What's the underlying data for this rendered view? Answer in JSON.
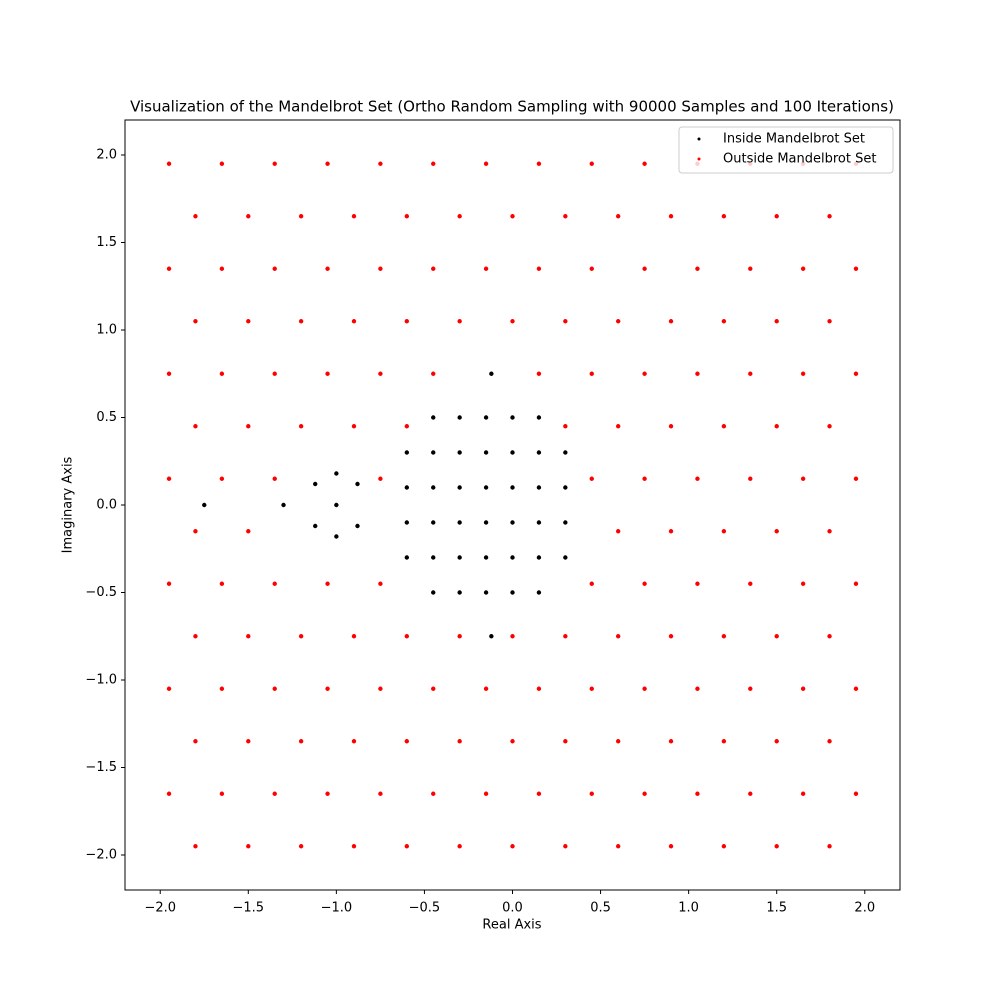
{
  "chart_data": {
    "type": "scatter",
    "title": "Visualization of the Mandelbrot Set (Ortho Random Sampling with 90000 Samples and 100 Iterations)",
    "x_label": "Real Axis",
    "y_label": "Imaginary Axis",
    "xlim": [
      -2.2,
      2.2
    ],
    "ylim": [
      -2.2,
      2.2
    ],
    "xticks": [
      {
        "value": -2,
        "label": "−2.0"
      },
      {
        "value": -1.5,
        "label": "−1.5"
      },
      {
        "value": -1,
        "label": "−1.0"
      },
      {
        "value": -0.5,
        "label": "−0.5"
      },
      {
        "value": 0,
        "label": "0.0"
      },
      {
        "value": 0.5,
        "label": "0.5"
      },
      {
        "value": 1,
        "label": "1.0"
      },
      {
        "value": 1.5,
        "label": "1.5"
      },
      {
        "value": 2,
        "label": "2.0"
      }
    ],
    "yticks": [
      {
        "value": -2,
        "label": "−2.0"
      },
      {
        "value": -1.5,
        "label": "−1.5"
      },
      {
        "value": -1,
        "label": "−1.0"
      },
      {
        "value": -0.5,
        "label": "−0.5"
      },
      {
        "value": 0,
        "label": "0.0"
      },
      {
        "value": 0.5,
        "label": "0.5"
      },
      {
        "value": 1,
        "label": "1.0"
      },
      {
        "value": 1.5,
        "label": "1.5"
      },
      {
        "value": 2,
        "label": "2.0"
      }
    ],
    "legend": "upper right",
    "series": [
      {
        "name": "Inside Mandelbrot Set",
        "color": "black",
        "x": [
          -0.45,
          -0.3,
          -0.15,
          0,
          0.15,
          -0.6,
          -0.45,
          -0.3,
          -0.15,
          0,
          0.15,
          0.3,
          -0.6,
          -0.45,
          -0.3,
          -0.15,
          0,
          0.15,
          0.3,
          -0.6,
          -0.45,
          -0.3,
          -0.15,
          0,
          0.15,
          0.3,
          -0.6,
          -0.45,
          -0.3,
          -0.15,
          0,
          0.15,
          0.3,
          -0.45,
          -0.3,
          -0.15,
          0,
          0.15,
          -1,
          -1.12,
          -0.88,
          -1.12,
          -0.88,
          -1,
          -1,
          -0.12,
          -0.12,
          -1.3,
          -1.75
        ],
        "y": [
          0.5,
          0.5,
          0.5,
          0.5,
          0.5,
          0.3,
          0.3,
          0.3,
          0.3,
          0.3,
          0.3,
          0.3,
          0.1,
          0.1,
          0.1,
          0.1,
          0.1,
          0.1,
          0.1,
          -0.1,
          -0.1,
          -0.1,
          -0.1,
          -0.1,
          -0.1,
          -0.1,
          -0.3,
          -0.3,
          -0.3,
          -0.3,
          -0.3,
          -0.3,
          -0.3,
          -0.5,
          -0.5,
          -0.5,
          -0.5,
          -0.5,
          0,
          0.12,
          0.12,
          -0.12,
          -0.12,
          0.18,
          -0.18,
          0.75,
          -0.75,
          0,
          0
        ]
      },
      {
        "name": "Outside Mandelbrot Set",
        "color": "red",
        "x": [
          -1.95,
          -1.65,
          -1.35,
          -1.05,
          -0.75,
          -0.45,
          -0.15,
          0.15,
          0.45,
          0.75,
          1.05,
          1.35,
          1.65,
          1.95,
          -1.8,
          -1.5,
          -1.2,
          -0.9,
          -0.6,
          -0.3,
          0,
          0.3,
          0.6,
          0.9,
          1.2,
          1.5,
          1.8,
          -1.95,
          -1.65,
          -1.35,
          -1.05,
          -0.75,
          -0.45,
          -0.15,
          0.15,
          0.45,
          0.75,
          1.05,
          1.35,
          1.65,
          1.95,
          -1.8,
          -1.5,
          -1.2,
          -0.9,
          -0.6,
          -0.3,
          0,
          0.3,
          0.6,
          0.9,
          1.2,
          1.5,
          1.8,
          -1.95,
          -1.65,
          -1.35,
          -1.05,
          -0.75,
          -0.45,
          0.15,
          0.45,
          0.75,
          1.05,
          1.35,
          1.65,
          1.95,
          -1.8,
          -1.5,
          -1.2,
          -0.9,
          -0.6,
          0.3,
          0.6,
          0.9,
          1.2,
          1.5,
          1.8,
          -1.95,
          -1.65,
          -1.35,
          -0.75,
          0.45,
          0.75,
          1.05,
          1.35,
          1.65,
          1.95,
          -1.8,
          -1.5,
          0.6,
          0.9,
          1.2,
          1.5,
          1.8,
          -1.95,
          -1.65,
          -1.35,
          -1.05,
          -0.75,
          0.45,
          0.75,
          1.05,
          1.35,
          1.65,
          1.95,
          -1.8,
          -1.5,
          -1.2,
          -0.9,
          -0.6,
          -0.3,
          0,
          0.3,
          0.6,
          0.9,
          1.2,
          1.5,
          1.8,
          -1.95,
          -1.65,
          -1.35,
          -1.05,
          -0.75,
          -0.45,
          -0.15,
          0.15,
          0.45,
          0.75,
          1.05,
          1.35,
          1.65,
          1.95,
          -1.8,
          -1.5,
          -1.2,
          -0.9,
          -0.6,
          -0.3,
          0,
          0.3,
          0.6,
          0.9,
          1.2,
          1.5,
          1.8,
          -1.95,
          -1.65,
          -1.35,
          -1.05,
          -0.75,
          -0.45,
          -0.15,
          0.15,
          0.45,
          0.75,
          1.05,
          1.35,
          1.65,
          1.95,
          -1.8,
          -1.5,
          -1.2,
          -0.9,
          -0.6,
          -0.3,
          0,
          0.3,
          0.6,
          0.9,
          1.2,
          1.5,
          1.8
        ],
        "y": [
          1.95,
          1.95,
          1.95,
          1.95,
          1.95,
          1.95,
          1.95,
          1.95,
          1.95,
          1.95,
          1.95,
          1.95,
          1.95,
          1.95,
          1.65,
          1.65,
          1.65,
          1.65,
          1.65,
          1.65,
          1.65,
          1.65,
          1.65,
          1.65,
          1.65,
          1.65,
          1.65,
          1.35,
          1.35,
          1.35,
          1.35,
          1.35,
          1.35,
          1.35,
          1.35,
          1.35,
          1.35,
          1.35,
          1.35,
          1.35,
          1.35,
          1.05,
          1.05,
          1.05,
          1.05,
          1.05,
          1.05,
          1.05,
          1.05,
          1.05,
          1.05,
          1.05,
          1.05,
          1.05,
          0.75,
          0.75,
          0.75,
          0.75,
          0.75,
          0.75,
          0.75,
          0.75,
          0.75,
          0.75,
          0.75,
          0.75,
          0.75,
          0.45,
          0.45,
          0.45,
          0.45,
          0.45,
          0.45,
          0.45,
          0.45,
          0.45,
          0.45,
          0.45,
          0.15,
          0.15,
          0.15,
          0.15,
          0.15,
          0.15,
          0.15,
          0.15,
          0.15,
          0.15,
          -0.15,
          -0.15,
          -0.15,
          -0.15,
          -0.15,
          -0.15,
          -0.15,
          -0.45,
          -0.45,
          -0.45,
          -0.45,
          -0.45,
          -0.45,
          -0.45,
          -0.45,
          -0.45,
          -0.45,
          -0.45,
          -0.75,
          -0.75,
          -0.75,
          -0.75,
          -0.75,
          -0.75,
          -0.75,
          -0.75,
          -0.75,
          -0.75,
          -0.75,
          -0.75,
          -0.75,
          -1.05,
          -1.05,
          -1.05,
          -1.05,
          -1.05,
          -1.05,
          -1.05,
          -1.05,
          -1.05,
          -1.05,
          -1.05,
          -1.05,
          -1.05,
          -1.05,
          -1.35,
          -1.35,
          -1.35,
          -1.35,
          -1.35,
          -1.35,
          -1.35,
          -1.35,
          -1.35,
          -1.35,
          -1.35,
          -1.35,
          -1.35,
          -1.65,
          -1.65,
          -1.65,
          -1.65,
          -1.65,
          -1.65,
          -1.65,
          -1.65,
          -1.65,
          -1.65,
          -1.65,
          -1.65,
          -1.65,
          -1.65,
          -1.95,
          -1.95,
          -1.95,
          -1.95,
          -1.95,
          -1.95,
          -1.95,
          -1.95,
          -1.95,
          -1.95,
          -1.95,
          -1.95,
          -1.95
        ]
      }
    ]
  }
}
